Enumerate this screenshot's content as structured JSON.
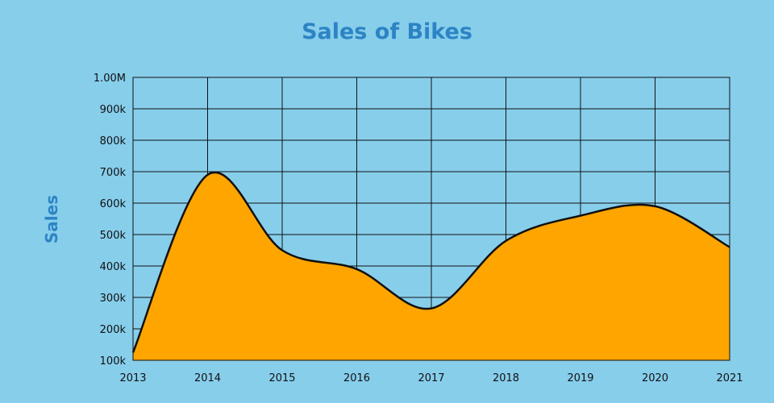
{
  "chart_data": {
    "type": "area",
    "title": "Sales of Bikes",
    "xlabel": "",
    "ylabel": "Sales",
    "x": [
      2013,
      2014,
      2015,
      2016,
      2017,
      2018,
      2019,
      2020,
      2021
    ],
    "x_tick_labels": [
      "2013",
      "2014",
      "2015",
      "2016",
      "2017",
      "2018",
      "2019",
      "2020",
      "2021"
    ],
    "y_tick_values": [
      100000,
      200000,
      300000,
      400000,
      500000,
      600000,
      700000,
      800000,
      900000,
      1000000
    ],
    "y_tick_labels": [
      "100k",
      "200k",
      "300k",
      "400k",
      "500k",
      "600k",
      "700k",
      "800k",
      "900k",
      "1.00M"
    ],
    "xlim": [
      2013,
      2021
    ],
    "ylim": [
      100000,
      1000000
    ],
    "grid": true,
    "series": [
      {
        "values": [
          125000,
          690000,
          450000,
          390000,
          265000,
          480000,
          560000,
          590000,
          460000
        ]
      }
    ],
    "colors": {
      "background": "#87ceeb",
      "area_fill": "#ffa500",
      "line": "#111111",
      "grid": "#111111",
      "title": "#2d84c4"
    }
  }
}
